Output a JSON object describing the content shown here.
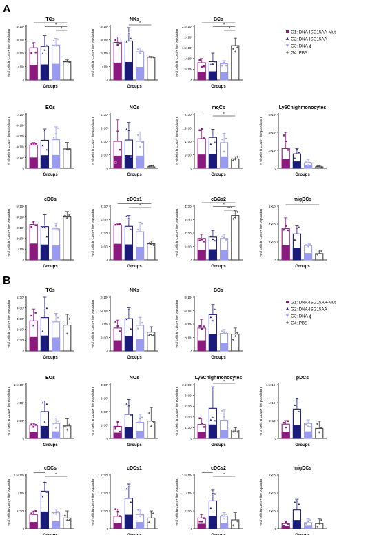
{
  "figure": {
    "colors": {
      "g1": "#8b1a7f",
      "g2": "#1a1a7a",
      "g3": "#9a9aee",
      "g4": "#444444"
    },
    "panels": [
      {
        "letter": "A"
      },
      {
        "letter": "B"
      }
    ],
    "legends": [
      {
        "items": [
          "G1: DNA-ISG15AA-Mut",
          "G2: DNA-ISG15AA",
          "G3: DNA-ɸ",
          "G4: PBS"
        ]
      },
      {
        "items": [
          "G1: DNA-ISG15AA-Mut",
          "G2: DNA-ISG15AA",
          "G3: DNA-ɸ",
          "G4: PBS"
        ]
      }
    ]
  },
  "chart_data": [
    {
      "panel": "A",
      "title": "TCs",
      "xlabel": "Groups",
      "ylabel": "% of cells in CD45+ live population",
      "yticks": [
        "0",
        "1×10⁴",
        "2×10⁴",
        "3×10⁴",
        "4×10⁴"
      ],
      "ylim": [
        0,
        4
      ],
      "type": "bar",
      "values": [
        2.4,
        2.5,
        2.6,
        1.35
      ],
      "errors": [
        0.4,
        0.8,
        0.5,
        0.15
      ],
      "sig": [
        {
          "a": 0,
          "b": 3,
          "label": "*"
        },
        {
          "a": 1,
          "b": 3,
          "label": "*"
        },
        {
          "a": 2,
          "b": 3,
          "label": "*"
        }
      ]
    },
    {
      "panel": "A",
      "title": "NKs",
      "xlabel": "Groups",
      "ylabel": "% of cells in CD45+ live population",
      "yticks": [
        "0",
        "1×10⁴",
        "2×10⁴",
        "3×10⁴",
        "4×10⁴"
      ],
      "ylim": [
        0,
        4
      ],
      "type": "bar",
      "values": [
        2.8,
        2.9,
        2.1,
        1.7
      ],
      "errors": [
        0.4,
        1.0,
        0.3,
        0.05
      ],
      "sig": [
        {
          "a": 1,
          "b": 3,
          "label": "*"
        }
      ]
    },
    {
      "panel": "A",
      "title": "BCs",
      "xlabel": "Groups",
      "ylabel": "% of cells in CD45+ live population",
      "yticks": [
        "0",
        "5×10⁴",
        "1×10⁵",
        "1.5×10⁵",
        "2×10⁵",
        "2.5×10⁵"
      ],
      "ylim": [
        0,
        2.5
      ],
      "type": "bar",
      "values": [
        0.8,
        0.85,
        0.75,
        1.6
      ],
      "errors": [
        0.2,
        0.4,
        0.15,
        0.35
      ],
      "sig": [
        {
          "a": 0,
          "b": 3,
          "label": "*"
        },
        {
          "a": 1,
          "b": 3,
          "label": "*"
        },
        {
          "a": 2,
          "b": 3,
          "label": "*"
        }
      ]
    },
    {
      "panel": "A",
      "title": "EOs",
      "xlabel": "Groups",
      "ylabel": "% of cells in CD45+ live population",
      "yticks": [
        "0",
        "2×10⁴",
        "4×10⁴",
        "6×10⁴",
        "8×10⁴",
        "1×10⁵"
      ],
      "ylim": [
        0,
        10
      ],
      "type": "bar",
      "values": [
        4.3,
        5.2,
        5.3,
        3.6
      ],
      "errors": [
        0.5,
        2.1,
        2.4,
        1.2
      ],
      "sig": []
    },
    {
      "panel": "A",
      "title": "NOs",
      "xlabel": "Groups",
      "ylabel": "% of cells in CD45+ live population",
      "yticks": [
        "0",
        "1×10³",
        "2×10³",
        "3×10³",
        "4×10³"
      ],
      "ylim": [
        0,
        4
      ],
      "type": "bar",
      "values": [
        2.0,
        2.1,
        2.0,
        0.1
      ],
      "errors": [
        1.6,
        1.3,
        0.7,
        0.1
      ],
      "sig": []
    },
    {
      "panel": "A",
      "title": "moCs",
      "xlabel": "Groups",
      "ylabel": "% of cells in CD45+ live population",
      "yticks": [
        "0",
        "5×10²",
        "1×10³",
        "1.5×10³",
        "2×10³"
      ],
      "ylim": [
        0,
        2
      ],
      "type": "bar",
      "values": [
        1.1,
        1.15,
        0.95,
        0.35
      ],
      "errors": [
        0.4,
        0.3,
        0.35,
        0.08
      ],
      "sig": [
        {
          "a": 0,
          "b": 3,
          "label": "*"
        },
        {
          "a": 1,
          "b": 3,
          "label": "**"
        }
      ]
    },
    {
      "panel": "A",
      "title": "Ly6Chighmonocytes",
      "xlabel": "Groups",
      "ylabel": "% of cells in CD45+ live population",
      "yticks": [
        "0",
        "2×10⁴",
        "4×10⁴",
        "6×10⁴"
      ],
      "ylim": [
        0,
        6
      ],
      "type": "bar",
      "values": [
        2.2,
        1.6,
        0.6,
        0.15
      ],
      "errors": [
        1.8,
        0.6,
        0.4,
        0.1
      ],
      "sig": []
    },
    {
      "panel": "A",
      "title": "cDCs",
      "xlabel": "Groups",
      "ylabel": "% of cells in CD45+ live population",
      "yticks": [
        "0",
        "1×10⁴",
        "2×10⁴",
        "3×10⁴",
        "4×10⁴",
        "5×10⁴"
      ],
      "ylim": [
        0,
        5
      ],
      "type": "bar",
      "values": [
        3.3,
        3.1,
        2.9,
        4.0
      ],
      "errors": [
        0.3,
        1.1,
        0.5,
        0.5
      ],
      "sig": []
    },
    {
      "panel": "A",
      "title": "cDCs1",
      "xlabel": "Groups",
      "ylabel": "% of cells in CD45+ live population",
      "yticks": [
        "0",
        "5×10²",
        "1×10³",
        "1.5×10³",
        "2×10³"
      ],
      "ylim": [
        0,
        2
      ],
      "type": "bar",
      "values": [
        1.3,
        1.25,
        1.05,
        0.6
      ],
      "errors": [
        0.05,
        0.4,
        0.35,
        0.1
      ],
      "sig": [
        {
          "a": 0,
          "b": 3,
          "label": "*"
        },
        {
          "a": 1,
          "b": 3,
          "label": "*"
        }
      ]
    },
    {
      "panel": "A",
      "title": "cDCs2",
      "xlabel": "Groups",
      "ylabel": "% of cells in CD45+ live population",
      "yticks": [
        "0",
        "1×10³",
        "2×10³",
        "3×10³",
        "4×10³"
      ],
      "ylim": [
        0,
        4
      ],
      "type": "bar",
      "values": [
        1.6,
        1.7,
        1.6,
        3.3
      ],
      "errors": [
        0.3,
        0.5,
        0.3,
        0.35
      ],
      "sig": [
        {
          "a": 0,
          "b": 3,
          "label": "***"
        },
        {
          "a": 1,
          "b": 3,
          "label": "**"
        },
        {
          "a": 2,
          "b": 3,
          "label": "***"
        }
      ]
    },
    {
      "panel": "A",
      "title": "migDCs",
      "xlabel": "Groups",
      "ylabel": "% of cells in CD45+ live population",
      "yticks": [
        "0",
        "2×10³",
        "4×10³",
        "6×10³"
      ],
      "ylim": [
        0,
        6
      ],
      "type": "bar",
      "values": [
        3.5,
        2.9,
        1.6,
        0.7
      ],
      "errors": [
        1.2,
        0.9,
        0.3,
        0.4
      ],
      "sig": [
        {
          "a": 0,
          "b": 3,
          "label": "*"
        }
      ]
    },
    {
      "panel": "B",
      "title": "TCs",
      "xlabel": "Groups",
      "ylabel": "% of cells in CD45+ live population",
      "yticks": [
        "0",
        "1×10³",
        "2×10³",
        "3×10³",
        "4×10³",
        "5×10³"
      ],
      "ylim": [
        0,
        5
      ],
      "type": "bar",
      "values": [
        2.8,
        3.1,
        2.7,
        2.4
      ],
      "errors": [
        1.1,
        2.4,
        0.8,
        1.0
      ],
      "sig": []
    },
    {
      "panel": "B",
      "title": "NKs",
      "xlabel": "Groups",
      "ylabel": "% of cells in CD45+ live population",
      "yticks": [
        "0",
        "5×10³",
        "1×10⁴",
        "1.5×10⁴",
        "2×10⁴"
      ],
      "ylim": [
        0,
        2
      ],
      "type": "bar",
      "values": [
        0.85,
        1.2,
        0.95,
        0.7
      ],
      "errors": [
        0.3,
        0.4,
        0.3,
        0.2
      ],
      "sig": []
    },
    {
      "panel": "B",
      "title": "BCs",
      "xlabel": "Groups",
      "ylabel": "% of cells in CD45+ live population",
      "yticks": [
        "0",
        "2×10⁴",
        "4×10⁴",
        "6×10⁴",
        "8×10⁴"
      ],
      "ylim": [
        0,
        8
      ],
      "type": "bar",
      "values": [
        3.4,
        5.4,
        2.6,
        2.5
      ],
      "errors": [
        1.3,
        1.5,
        0.6,
        0.9
      ],
      "sig": []
    },
    {
      "panel": "B",
      "title": "EOs",
      "xlabel": "Groups",
      "ylabel": "% of cells in CD45+ live population",
      "yticks": [
        "0",
        "5×10³",
        "1×10⁴",
        "1.5×10⁴"
      ],
      "ylim": [
        0,
        1.5
      ],
      "type": "bar",
      "values": [
        0.37,
        0.75,
        0.42,
        0.35
      ],
      "errors": [
        0.05,
        0.3,
        0.15,
        0.2
      ],
      "sig": []
    },
    {
      "panel": "B",
      "title": "NOs",
      "xlabel": "Groups",
      "ylabel": "% of cells in CD45+ live population",
      "yticks": [
        "0",
        "1×10²",
        "2×10²",
        "3×10²",
        "4×10²"
      ],
      "ylim": [
        0,
        4
      ],
      "type": "bar",
      "values": [
        0.9,
        1.8,
        1.2,
        1.3
      ],
      "errors": [
        0.4,
        1.1,
        0.6,
        1.0
      ],
      "sig": []
    },
    {
      "panel": "B",
      "title": "Ly6Chighmonocytes",
      "xlabel": "Groups",
      "ylabel": "% of cells in CD45+ live population",
      "yticks": [
        "0",
        "5×10²",
        "1×10³",
        "1.5×10³",
        "2×10³",
        "2.5×10³"
      ],
      "ylim": [
        0,
        2.5
      ],
      "type": "bar",
      "values": [
        0.65,
        1.4,
        0.85,
        0.4
      ],
      "errors": [
        0.3,
        1.0,
        0.5,
        0.1
      ],
      "sig": [
        {
          "a": 1,
          "b": 3,
          "label": "*"
        }
      ]
    },
    {
      "panel": "B",
      "title": "pDCs",
      "xlabel": "Groups",
      "ylabel": "% of cells in CD45+ live population",
      "yticks": [
        "0",
        "5×10³",
        "1×10⁴",
        "1.5×10⁴"
      ],
      "ylim": [
        0,
        1.5
      ],
      "type": "bar",
      "values": [
        0.4,
        0.82,
        0.42,
        0.28
      ],
      "errors": [
        0.1,
        0.3,
        0.1,
        0.2
      ],
      "sig": []
    },
    {
      "panel": "B",
      "title": "cDCs",
      "xlabel": "Groups",
      "ylabel": "% of cells in CD45+ live population",
      "yticks": [
        "0",
        "5×10³",
        "1×10⁴",
        "1.5×10⁴"
      ],
      "ylim": [
        0,
        1.5
      ],
      "type": "bar",
      "values": [
        0.4,
        1.05,
        0.45,
        0.3
      ],
      "errors": [
        0.1,
        0.25,
        0.1,
        0.2
      ],
      "sig": [
        {
          "a": 0,
          "b": 1,
          "label": "*"
        },
        {
          "a": 1,
          "b": 3,
          "label": "*"
        }
      ]
    },
    {
      "panel": "B",
      "title": "cDCs1",
      "xlabel": "Groups",
      "ylabel": "% of cells in CD45+ live population",
      "yticks": [
        "0",
        "5×10²",
        "1×10³",
        "1.5×10³"
      ],
      "ylim": [
        0,
        1.5
      ],
      "type": "bar",
      "values": [
        0.35,
        0.85,
        0.4,
        0.3
      ],
      "errors": [
        0.2,
        0.4,
        0.15,
        0.2
      ],
      "sig": []
    },
    {
      "panel": "B",
      "title": "cDCs2",
      "xlabel": "Groups",
      "ylabel": "% of cells in CD45+ live population",
      "yticks": [
        "0",
        "5×10³",
        "1×10⁴",
        "1.5×10⁴"
      ],
      "ylim": [
        0,
        1.5
      ],
      "type": "bar",
      "values": [
        0.3,
        0.78,
        0.35,
        0.25
      ],
      "errors": [
        0.1,
        0.3,
        0.1,
        0.2
      ],
      "sig": [
        {
          "a": 0,
          "b": 1,
          "label": "*"
        },
        {
          "a": 1,
          "b": 3,
          "label": "*"
        }
      ]
    },
    {
      "panel": "B",
      "title": "migDCs",
      "xlabel": "Groups",
      "ylabel": "% of cells in CD45+ live population",
      "yticks": [
        "0",
        "2×10³",
        "4×10³",
        "6×10³"
      ],
      "ylim": [
        0,
        6
      ],
      "type": "bar",
      "values": [
        0.6,
        2.1,
        0.7,
        0.6
      ],
      "errors": [
        0.3,
        1.2,
        0.4,
        0.5
      ],
      "sig": []
    }
  ]
}
